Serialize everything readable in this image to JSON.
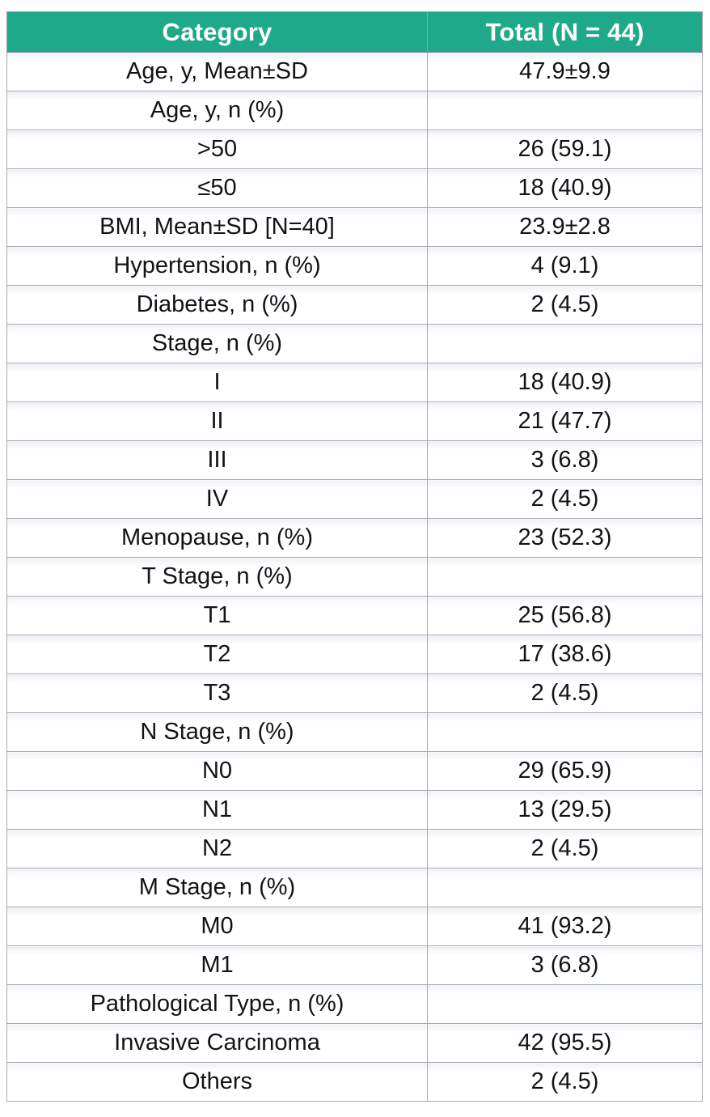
{
  "table": {
    "columns": [
      {
        "label": "Category"
      },
      {
        "label": "Total (N = 44)"
      }
    ],
    "rows": [
      {
        "label": "Age, y, Mean±SD",
        "value": "47.9±9.9"
      },
      {
        "label": "Age, y, n (%)",
        "value": ""
      },
      {
        "label": ">50",
        "value": "26 (59.1)"
      },
      {
        "label": "≤50",
        "value": "18 (40.9)"
      },
      {
        "label": "BMI, Mean±SD [N=40]",
        "value": "23.9±2.8"
      },
      {
        "label": "Hypertension, n (%)",
        "value": "4 (9.1)"
      },
      {
        "label": "Diabetes, n (%)",
        "value": "2 (4.5)"
      },
      {
        "label": "Stage, n (%)",
        "value": ""
      },
      {
        "label": "I",
        "value": "18 (40.9)"
      },
      {
        "label": "II",
        "value": "21 (47.7)"
      },
      {
        "label": "III",
        "value": "3 (6.8)"
      },
      {
        "label": "IV",
        "value": "2 (4.5)"
      },
      {
        "label": "Menopause, n (%)",
        "value": "23 (52.3)"
      },
      {
        "label": "T Stage, n (%)",
        "value": ""
      },
      {
        "label": "T1",
        "value": "25 (56.8)"
      },
      {
        "label": "T2",
        "value": "17 (38.6)"
      },
      {
        "label": "T3",
        "value": "2 (4.5)"
      },
      {
        "label": "N Stage, n (%)",
        "value": ""
      },
      {
        "label": "N0",
        "value": "29 (65.9)"
      },
      {
        "label": "N1",
        "value": "13 (29.5)"
      },
      {
        "label": "N2",
        "value": "2 (4.5)"
      },
      {
        "label": "M Stage, n (%)",
        "value": ""
      },
      {
        "label": "M0",
        "value": "41 (93.2)"
      },
      {
        "label": "M1",
        "value": "3 (6.8)"
      },
      {
        "label": "Pathological Type, n (%)",
        "value": ""
      },
      {
        "label": "Invasive Carcinoma",
        "value": "42 (95.5)"
      },
      {
        "label": "Others",
        "value": "2 (4.5)"
      }
    ],
    "colors": {
      "header_bg": "#1fa98b",
      "header_text": "#ffffff",
      "grid_line": "#a7aaad",
      "body_text": "#111316"
    }
  },
  "chart_data": {
    "type": "table",
    "columns": [
      "Category",
      "Total (N = 44)"
    ],
    "rows": [
      [
        "Age, y, Mean±SD",
        "47.9±9.9"
      ],
      [
        "Age, y, n (%)",
        ""
      ],
      [
        ">50",
        "26 (59.1)"
      ],
      [
        "≤50",
        "18 (40.9)"
      ],
      [
        "BMI, Mean±SD [N=40]",
        "23.9±2.8"
      ],
      [
        "Hypertension, n (%)",
        "4 (9.1)"
      ],
      [
        "Diabetes, n (%)",
        "2 (4.5)"
      ],
      [
        "Stage, n (%)",
        ""
      ],
      [
        "I",
        "18 (40.9)"
      ],
      [
        "II",
        "21 (47.7)"
      ],
      [
        "III",
        "3 (6.8)"
      ],
      [
        "IV",
        "2 (4.5)"
      ],
      [
        "Menopause, n (%)",
        "23 (52.3)"
      ],
      [
        "T Stage, n (%)",
        ""
      ],
      [
        "T1",
        "25 (56.8)"
      ],
      [
        "T2",
        "17 (38.6)"
      ],
      [
        "T3",
        "2 (4.5)"
      ],
      [
        "N Stage, n (%)",
        ""
      ],
      [
        "N0",
        "29 (65.9)"
      ],
      [
        "N1",
        "13 (29.5)"
      ],
      [
        "N2",
        "2 (4.5)"
      ],
      [
        "M Stage, n (%)",
        ""
      ],
      [
        "M0",
        "41 (93.2)"
      ],
      [
        "M1",
        "3 (6.8)"
      ],
      [
        "Pathological Type, n (%)",
        ""
      ],
      [
        "Invasive Carcinoma",
        "42 (95.5)"
      ],
      [
        "Others",
        "2 (4.5)"
      ]
    ]
  }
}
